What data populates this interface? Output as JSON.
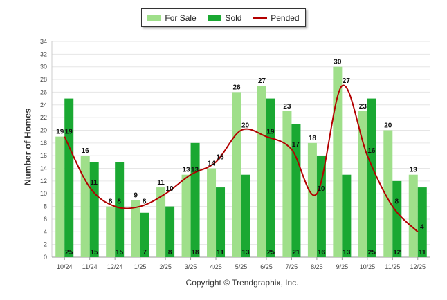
{
  "chart_data": {
    "type": "bar",
    "title": "",
    "ylabel": "Number of Homes",
    "xlabel": "",
    "ylim": [
      0,
      34
    ],
    "ytick_step": 2,
    "grid": true,
    "legend_position": "top-center",
    "categories": [
      "10/24",
      "11/24",
      "12/24",
      "1/25",
      "2/25",
      "3/25",
      "4/25",
      "5/25",
      "6/25",
      "7/25",
      "8/25",
      "9/25",
      "10/25",
      "11/25",
      "12/25"
    ],
    "series": [
      {
        "name": "For Sale",
        "kind": "bar",
        "color": "#9fdf8a",
        "values": [
          19,
          16,
          8,
          9,
          11,
          13,
          14,
          26,
          27,
          23,
          18,
          30,
          23,
          20,
          13
        ]
      },
      {
        "name": "Sold",
        "kind": "bar",
        "color": "#1aa832",
        "values": [
          25,
          15,
          15,
          7,
          8,
          18,
          11,
          13,
          25,
          21,
          16,
          13,
          25,
          12,
          11
        ]
      },
      {
        "name": "Pended",
        "kind": "line",
        "color": "#b30000",
        "values": [
          19,
          11,
          8,
          8,
          10,
          13,
          15,
          20,
          19,
          17,
          10,
          27,
          16,
          8,
          4
        ]
      }
    ]
  },
  "legend": {
    "for_sale": "For Sale",
    "sold": "Sold",
    "pended": "Pended"
  },
  "footer": {
    "copyright": "Copyright © Trendgraphix, Inc."
  }
}
